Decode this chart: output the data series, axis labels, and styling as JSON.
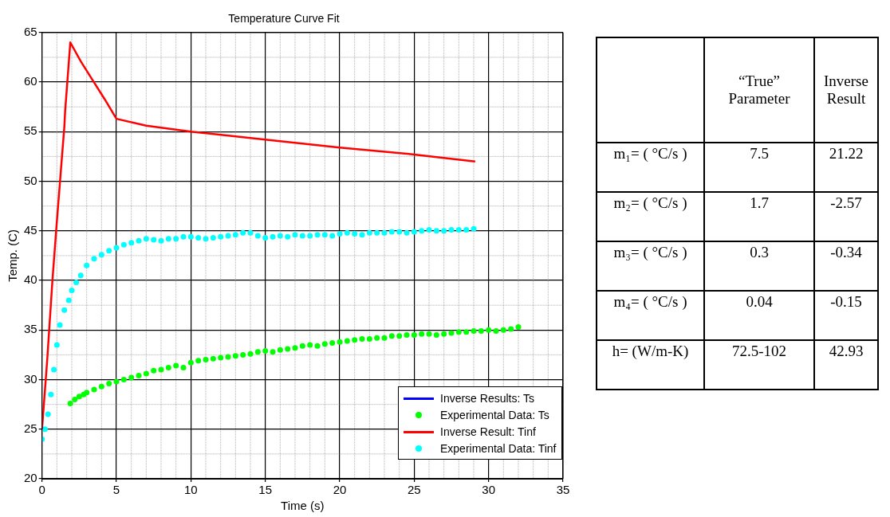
{
  "chart_data": [
    {
      "type": "line",
      "title": "Temperature Curve Fit",
      "xlabel": "Time (s)",
      "ylabel": "Temp. (C)",
      "xlim": [
        0,
        35
      ],
      "xticks": [
        0,
        5,
        10,
        15,
        20,
        25,
        30,
        35
      ],
      "ylim": [
        20,
        65
      ],
      "yticks": [
        20,
        25,
        30,
        35,
        40,
        45,
        50,
        55,
        60,
        65
      ],
      "grid": true,
      "legend": "bottom right",
      "series": [
        {
          "name": "Inverse Results: Ts",
          "type": "line",
          "marker": "none",
          "color": "#0000ff"
        },
        {
          "name": "Experimental Data: Ts",
          "type": "scatter",
          "marker": "circle",
          "color": "#00ff00",
          "x": [
            1.9,
            2.2,
            2.5,
            2.8,
            3,
            3.5,
            4,
            4.5,
            5,
            5.5,
            6,
            6.5,
            7,
            7.5,
            8,
            8.5,
            9,
            9.5,
            10,
            10.5,
            11,
            11.5,
            12,
            12.5,
            13,
            13.5,
            14,
            14.5,
            15,
            15.5,
            16,
            16.5,
            17,
            17.5,
            18,
            18.5,
            19,
            19.5,
            20,
            20.5,
            21,
            21.5,
            22,
            22.5,
            23,
            23.5,
            24,
            24.5,
            25,
            25.5,
            26,
            26.5,
            27,
            27.5,
            28,
            28.5,
            29,
            29.5,
            30,
            30.5,
            31,
            31.5,
            32
          ],
          "values": [
            27.6,
            28,
            28.3,
            28.5,
            28.7,
            29,
            29.3,
            29.6,
            29.8,
            30,
            30.2,
            30.4,
            30.6,
            30.9,
            31,
            31.2,
            31.4,
            31.2,
            31.7,
            31.9,
            32,
            32.1,
            32.2,
            32.3,
            32.4,
            32.5,
            32.6,
            32.8,
            32.9,
            32.8,
            33,
            33.1,
            33.2,
            33.4,
            33.5,
            33.4,
            33.6,
            33.7,
            33.8,
            33.9,
            34,
            34.1,
            34.1,
            34.2,
            34.2,
            34.4,
            34.4,
            34.5,
            34.5,
            34.6,
            34.6,
            34.5,
            34.6,
            34.7,
            34.8,
            34.8,
            34.9,
            34.9,
            35,
            34.9,
            35,
            35.1,
            35.3
          ]
        },
        {
          "name": "Inverse Result: Tinf",
          "type": "line",
          "marker": "none",
          "color": "#ff0000",
          "x": [
            0,
            0.35,
            0.7,
            1,
            1.5,
            1.55,
            1.9,
            2.6,
            3.4,
            4.2,
            5,
            7,
            10,
            15,
            20,
            25,
            29.1
          ],
          "values": [
            25,
            32,
            40,
            46,
            55.5,
            57,
            64,
            62.1,
            60.2,
            58.3,
            56.3,
            55.6,
            55,
            54.2,
            53.4,
            52.7,
            52
          ]
        },
        {
          "name": "Experimental Data: Tinf",
          "type": "scatter",
          "marker": "circle",
          "color": "#00ffff",
          "x": [
            0,
            0.2,
            0.4,
            0.6,
            0.8,
            1,
            1.2,
            1.5,
            1.8,
            2,
            2.3,
            2.6,
            3,
            3.5,
            4,
            4.5,
            5,
            5.5,
            6,
            6.5,
            7,
            7.5,
            8,
            8.5,
            9,
            9.5,
            10,
            10.5,
            11,
            11.5,
            12,
            12.5,
            13,
            13.5,
            14,
            14.5,
            15,
            15.5,
            16,
            16.5,
            17,
            17.5,
            18,
            18.5,
            19,
            19.5,
            20,
            20.5,
            21,
            21.5,
            22,
            22.5,
            23,
            23.5,
            24,
            24.5,
            25,
            25.5,
            26,
            26.5,
            27,
            27.5,
            28,
            28.5,
            29
          ],
          "values": [
            24,
            25,
            26.5,
            28.5,
            31,
            33.5,
            35.5,
            37,
            38,
            39,
            39.8,
            40.5,
            41.5,
            42.2,
            42.6,
            43,
            43.3,
            43.6,
            43.8,
            44,
            44.2,
            44.1,
            44,
            44.2,
            44.2,
            44.4,
            44.4,
            44.3,
            44.2,
            44.3,
            44.4,
            44.5,
            44.6,
            44.8,
            44.8,
            44.5,
            44.3,
            44.4,
            44.5,
            44.4,
            44.6,
            44.5,
            44.5,
            44.6,
            44.6,
            44.5,
            44.7,
            44.8,
            44.7,
            44.6,
            44.8,
            44.8,
            44.8,
            44.9,
            44.9,
            44.8,
            44.9,
            45,
            45.1,
            45,
            45,
            45.1,
            45.1,
            45.1,
            45.2
          ]
        }
      ]
    },
    {
      "type": "other",
      "categories": [
        null,
        "“True” Parameter",
        "Inverse Result"
      ],
      "y_categories": [
        "m₁= ( °C/s )",
        "m₂= ( °C/s )",
        "m₃= ( °C/s )",
        "m₄= ( °C/s )",
        "h= (W/m-K)"
      ],
      "cell_labels": [
        [
          "7.5",
          "21.22"
        ],
        [
          "1.7",
          "-2.57"
        ],
        [
          "0.3",
          "-0.34"
        ],
        [
          "0.04",
          "-0.15"
        ],
        [
          "72.5-102",
          "42.93"
        ]
      ]
    }
  ]
}
